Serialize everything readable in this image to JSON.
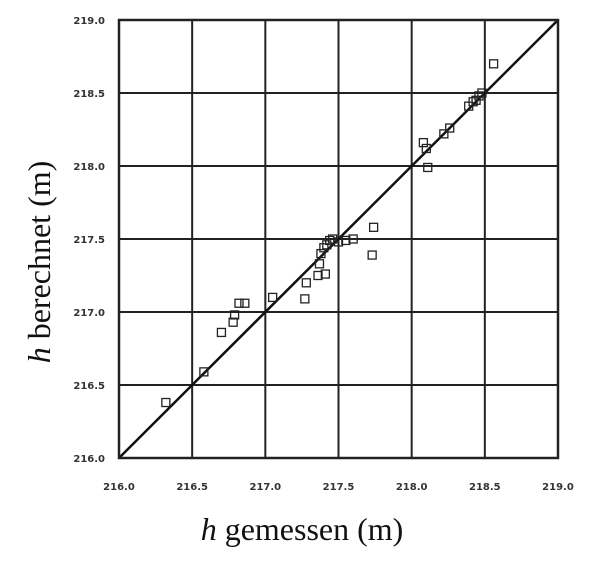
{
  "chart_data": {
    "type": "scatter",
    "title": "",
    "xlabel_italic": "h",
    "xlabel_rest": " gemessen (m)",
    "ylabel_italic": "h",
    "ylabel_rest": " berechnet (m)",
    "xlim": [
      216.0,
      219.0
    ],
    "ylim": [
      216.0,
      219.0
    ],
    "x_ticks": [
      "216.0",
      "216.5",
      "217.0",
      "217.5",
      "218.0",
      "218.5",
      "219.0"
    ],
    "y_ticks": [
      "216.0",
      "216.5",
      "217.0",
      "217.5",
      "218.0",
      "218.5",
      "219.0"
    ],
    "grid": true,
    "reference_line": "y = x",
    "marker": "open-square",
    "points": [
      {
        "x": 216.32,
        "y": 216.38
      },
      {
        "x": 216.58,
        "y": 216.59
      },
      {
        "x": 216.7,
        "y": 216.86
      },
      {
        "x": 216.78,
        "y": 216.93
      },
      {
        "x": 216.79,
        "y": 216.98
      },
      {
        "x": 216.82,
        "y": 217.06
      },
      {
        "x": 216.86,
        "y": 217.06
      },
      {
        "x": 217.05,
        "y": 217.1
      },
      {
        "x": 217.27,
        "y": 217.09
      },
      {
        "x": 217.28,
        "y": 217.2
      },
      {
        "x": 217.36,
        "y": 217.25
      },
      {
        "x": 217.37,
        "y": 217.33
      },
      {
        "x": 217.38,
        "y": 217.4
      },
      {
        "x": 217.4,
        "y": 217.44
      },
      {
        "x": 217.41,
        "y": 217.26
      },
      {
        "x": 217.42,
        "y": 217.46
      },
      {
        "x": 217.44,
        "y": 217.49
      },
      {
        "x": 217.46,
        "y": 217.5
      },
      {
        "x": 217.5,
        "y": 217.48
      },
      {
        "x": 217.55,
        "y": 217.49
      },
      {
        "x": 217.6,
        "y": 217.5
      },
      {
        "x": 217.74,
        "y": 217.58
      },
      {
        "x": 217.73,
        "y": 217.39
      },
      {
        "x": 218.08,
        "y": 218.16
      },
      {
        "x": 218.1,
        "y": 218.12
      },
      {
        "x": 218.11,
        "y": 217.99
      },
      {
        "x": 218.22,
        "y": 218.22
      },
      {
        "x": 218.26,
        "y": 218.26
      },
      {
        "x": 218.39,
        "y": 218.41
      },
      {
        "x": 218.42,
        "y": 218.44
      },
      {
        "x": 218.44,
        "y": 218.45
      },
      {
        "x": 218.46,
        "y": 218.48
      },
      {
        "x": 218.48,
        "y": 218.5
      },
      {
        "x": 218.56,
        "y": 218.7
      }
    ]
  }
}
